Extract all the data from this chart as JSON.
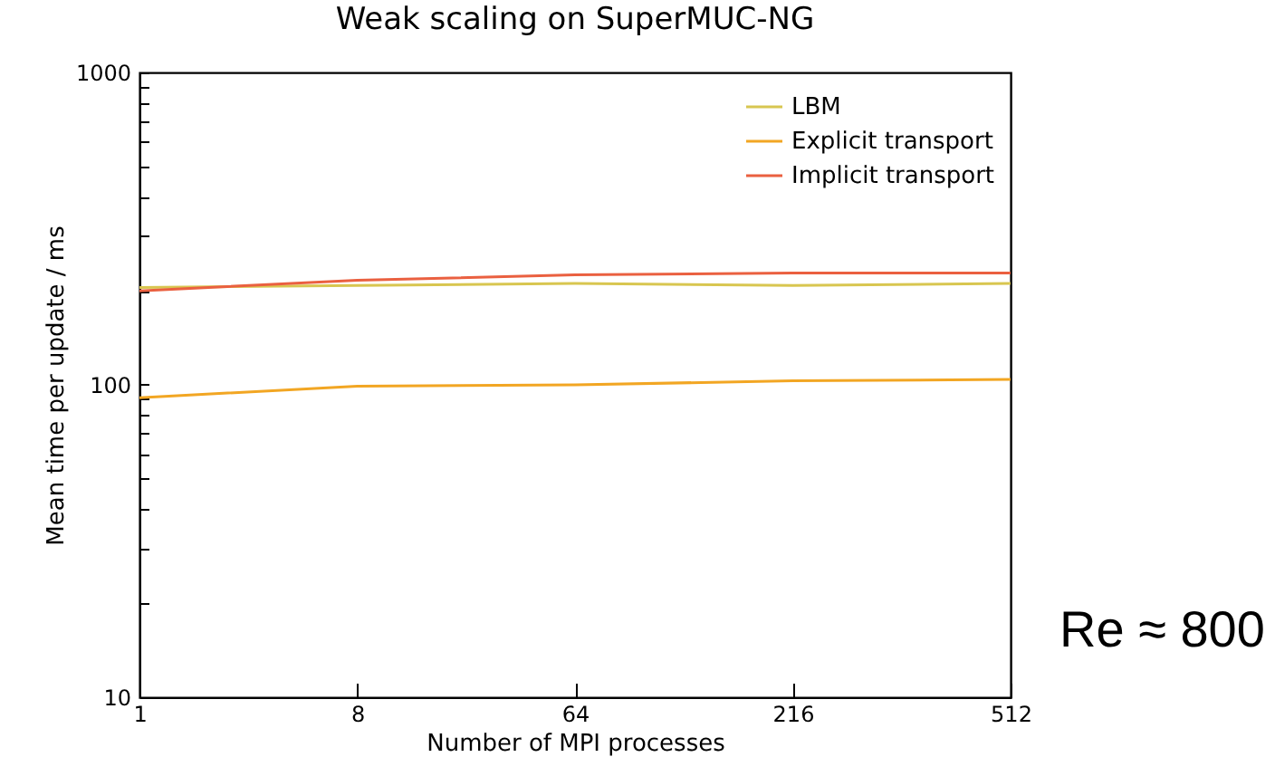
{
  "chart_data": {
    "type": "line",
    "title": "Weak scaling on SuperMUC-NG",
    "xlabel": "Number of MPI processes",
    "ylabel": "Mean time per update / ms",
    "categories": [
      "1",
      "8",
      "64",
      "216",
      "512"
    ],
    "series": [
      {
        "name": "LBM",
        "color": "#d8c650",
        "values": [
          205,
          208,
          211,
          208,
          211
        ]
      },
      {
        "name": "Explicit transport",
        "color": "#f2a623",
        "values": [
          91,
          99,
          100,
          103,
          104
        ]
      },
      {
        "name": "Implicit transport",
        "color": "#ea6040",
        "values": [
          200,
          216,
          225,
          228,
          228
        ]
      }
    ],
    "log": "y",
    "ylim": [
      10,
      1000
    ],
    "yticks": [
      10,
      {
        "value": 20,
        "label": null
      },
      {
        "value": 30,
        "label": null
      },
      {
        "value": 40,
        "label": null
      },
      {
        "value": 50,
        "label": null
      },
      {
        "value": 60,
        "label": null
      },
      {
        "value": 70,
        "label": null
      },
      {
        "value": 80,
        "label": null
      },
      {
        "value": 90,
        "label": null
      },
      100,
      {
        "value": 200,
        "label": null
      },
      {
        "value": 300,
        "label": null
      },
      {
        "value": 400,
        "label": null
      },
      {
        "value": 500,
        "label": null
      },
      {
        "value": 600,
        "label": null
      },
      {
        "value": 700,
        "label": null
      },
      {
        "value": 800,
        "label": null
      },
      {
        "value": 900,
        "label": null
      },
      1000
    ],
    "legend": "top right",
    "grid": false,
    "annotations": [
      "Re ≈ 800"
    ]
  }
}
